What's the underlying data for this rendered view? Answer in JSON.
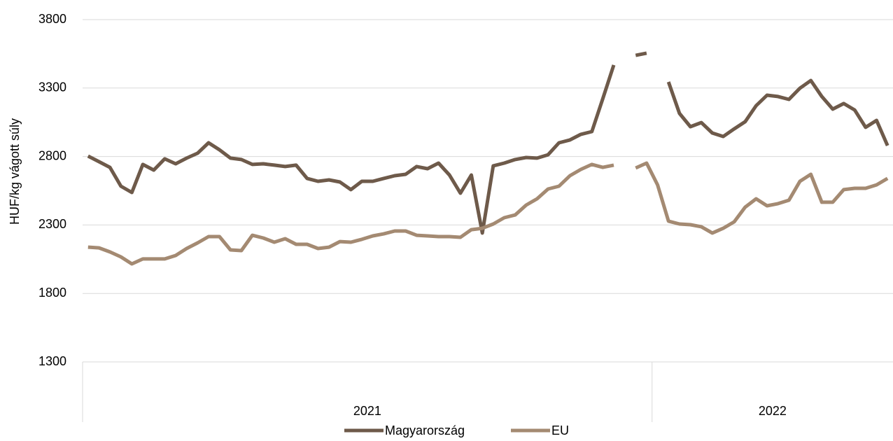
{
  "chart_data": {
    "type": "line",
    "y_label": "HUF/kg vágott súly",
    "categories": [
      null,
      null,
      null,
      null,
      null,
      null,
      null,
      null,
      null,
      null,
      null,
      null,
      null,
      null,
      null,
      null,
      null,
      null,
      null,
      null,
      null,
      null,
      null,
      null,
      null,
      null,
      null,
      null,
      null,
      null,
      null,
      null,
      null,
      null,
      null,
      null,
      null,
      null,
      null,
      null,
      null,
      null,
      null,
      null,
      null,
      null,
      null,
      null,
      null,
      null,
      null,
      null,
      null,
      null,
      null,
      null,
      null,
      null,
      null,
      null,
      null,
      null,
      null,
      null,
      null,
      null,
      null,
      null,
      null,
      null,
      null,
      null,
      null,
      null
    ],
    "category_groups": [
      {
        "label": "2021",
        "span": 52
      },
      {
        "label": "2022",
        "span": 22
      }
    ],
    "ylim": [
      1300,
      3800
    ],
    "yticks": [
      1300,
      1800,
      2300,
      2800,
      3300,
      3800
    ],
    "grid": true,
    "legend": "bottom",
    "series": [
      {
        "name": "Magyarország",
        "color": "#6e5a4a",
        "values": [
          2803,
          2762,
          2721,
          2583,
          2537,
          2742,
          2701,
          2783,
          2747,
          2788,
          2824,
          2900,
          2849,
          2788,
          2778,
          2742,
          2747,
          2737,
          2727,
          2737,
          2640,
          2619,
          2629,
          2614,
          2558,
          2619,
          2619,
          2640,
          2660,
          2670,
          2727,
          2711,
          2752,
          2665,
          2532,
          2665,
          2241,
          2732,
          2752,
          2778,
          2793,
          2788,
          2813,
          2900,
          2921,
          2962,
          2982,
          3222,
          3468,
          null,
          3539,
          3555,
          null,
          3345,
          3115,
          3018,
          3048,
          2972,
          2946,
          3002,
          3054,
          3171,
          3248,
          3238,
          3217,
          3299,
          3355,
          3238,
          3146,
          3187,
          3140,
          3013,
          3064,
          2880
        ]
      },
      {
        "name": "EU",
        "color": "#a48a72",
        "values": [
          2138,
          2133,
          2103,
          2067,
          2016,
          2052,
          2052,
          2052,
          2077,
          2128,
          2169,
          2215,
          2215,
          2118,
          2113,
          2225,
          2205,
          2174,
          2200,
          2159,
          2159,
          2128,
          2138,
          2179,
          2174,
          2195,
          2220,
          2235,
          2256,
          2256,
          2225,
          2220,
          2215,
          2215,
          2210,
          2266,
          2276,
          2307,
          2353,
          2373,
          2445,
          2491,
          2563,
          2583,
          2660,
          2706,
          2742,
          2721,
          2737,
          null,
          2716,
          2752,
          2593,
          2328,
          2307,
          2302,
          2287,
          2241,
          2276,
          2323,
          2430,
          2491,
          2440,
          2456,
          2481,
          2619,
          2670,
          2466,
          2466,
          2558,
          2568,
          2568,
          2593,
          2640
        ]
      }
    ]
  }
}
